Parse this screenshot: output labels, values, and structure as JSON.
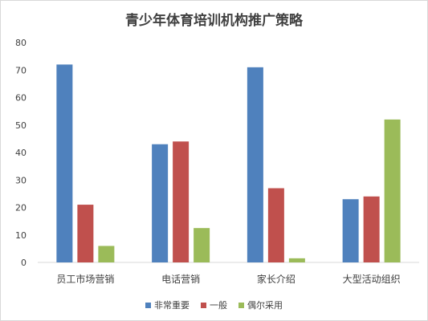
{
  "chart_data": {
    "type": "bar",
    "title": "青少年体育培训机构推广策略",
    "categories": [
      "员工市场营销",
      "电话营销",
      "家长介绍",
      "大型活动组织"
    ],
    "series": [
      {
        "name": "非常重要",
        "color": "#4f81bd",
        "values": [
          72,
          43,
          71,
          23
        ]
      },
      {
        "name": "一般",
        "color": "#c0504d",
        "values": [
          21,
          44,
          27,
          24
        ]
      },
      {
        "name": "偶尔采用",
        "color": "#9bbb59",
        "values": [
          6,
          12.5,
          1.5,
          52
        ]
      }
    ],
    "ylim": [
      0,
      80
    ],
    "yticks": [
      0,
      10,
      20,
      30,
      40,
      50,
      60,
      70,
      80
    ],
    "grid": false,
    "legend_position": "bottom"
  }
}
